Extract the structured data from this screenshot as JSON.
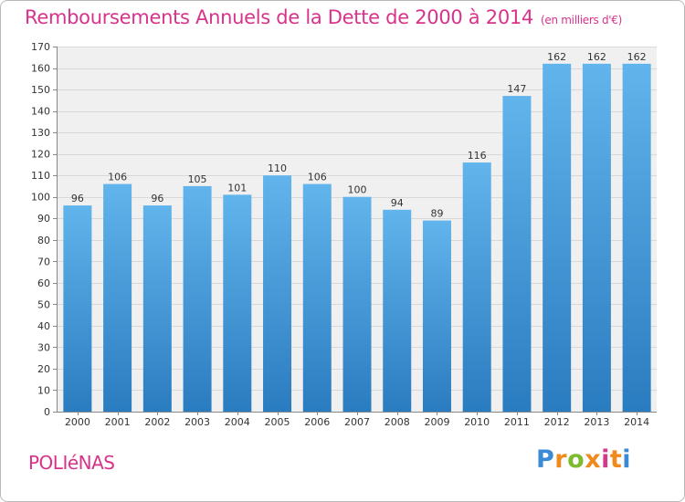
{
  "chart_data": {
    "type": "bar",
    "title": "Remboursements Annuels de la Dette de 2000 à 2014",
    "subtitle": "(en milliers d'€)",
    "categories": [
      "2000",
      "2001",
      "2002",
      "2003",
      "2004",
      "2005",
      "2006",
      "2007",
      "2008",
      "2009",
      "2010",
      "2011",
      "2012",
      "2013",
      "2014"
    ],
    "values": [
      96,
      106,
      96,
      105,
      101,
      110,
      106,
      100,
      94,
      89,
      116,
      147,
      162,
      162,
      162
    ],
    "ylim": [
      0,
      170
    ],
    "ytick_step": 10,
    "xlabel": "",
    "ylabel": "",
    "grid": true
  },
  "footer": {
    "commune": "POLIéNAS",
    "logo_letters": [
      "P",
      "r",
      "o",
      "x",
      "i",
      "t",
      "i"
    ],
    "logo_colors": [
      "#3b8ad6",
      "#f08a1c",
      "#7dbb2e",
      "#f08a1c",
      "#d23a8c",
      "#f08a1c",
      "#3b8ad6"
    ]
  },
  "colors": {
    "bar_light": "#62b4ec",
    "bar_dark": "#2a7cc0",
    "title": "#d8338a",
    "plot_bg": "#f0f0f0"
  }
}
